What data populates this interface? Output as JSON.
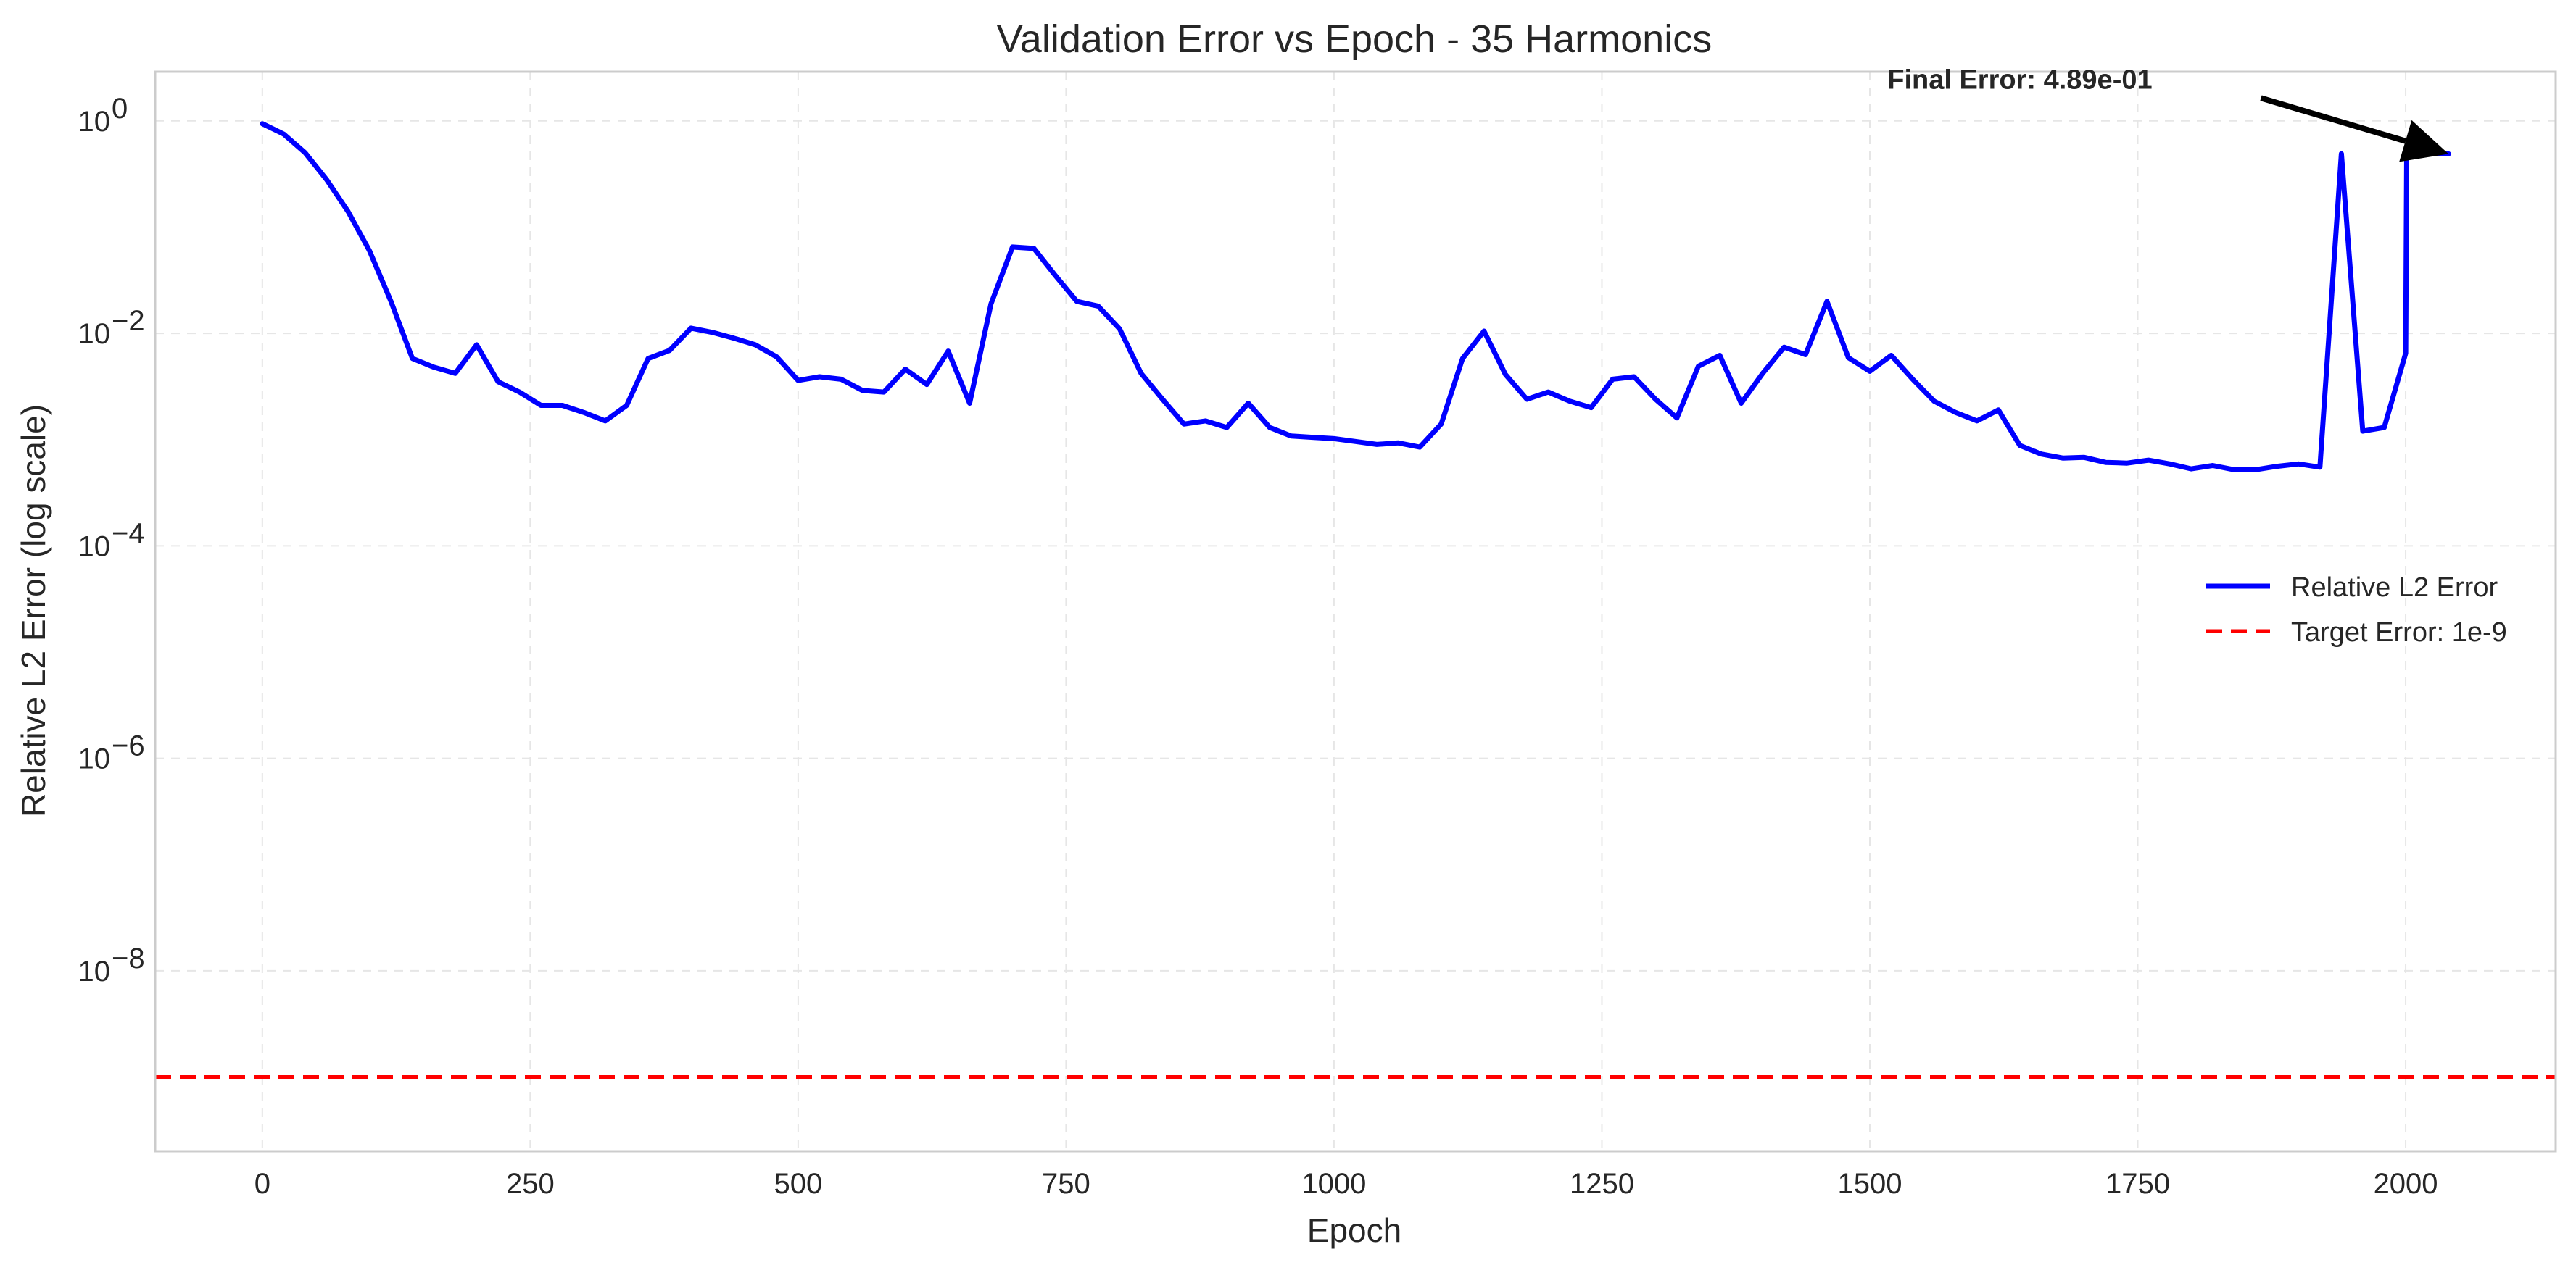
{
  "chart_data": {
    "type": "line",
    "title": "Validation Error vs Epoch - 35 Harmonics",
    "xlabel": "Epoch",
    "ylabel": "Relative L2 Error (log scale)",
    "yscale": "log",
    "xlim": [
      -100,
      2140
    ],
    "ylim": [
      2e-10,
      2.9
    ],
    "xticks": [
      0,
      250,
      500,
      750,
      1000,
      1250,
      1500,
      1750,
      2000
    ],
    "yticks": [
      {
        "value": 1,
        "base": "10",
        "exp": "0"
      },
      {
        "value": 0.01,
        "base": "10",
        "exp": "−2"
      },
      {
        "value": 0.0001,
        "base": "10",
        "exp": "−4"
      },
      {
        "value": 1e-06,
        "base": "10",
        "exp": "−6"
      },
      {
        "value": 1e-08,
        "base": "10",
        "exp": "−8"
      }
    ],
    "grid": true,
    "legend_position": "center-right",
    "series": [
      {
        "name": "Relative L2 Error",
        "color": "#0000ff",
        "style": "solid",
        "x": [
          0,
          20,
          40,
          60,
          80,
          100,
          120,
          140,
          160,
          180,
          200,
          220,
          240,
          260,
          280,
          300,
          320,
          340,
          360,
          380,
          400,
          420,
          440,
          460,
          480,
          500,
          520,
          540,
          560,
          580,
          600,
          620,
          640,
          660,
          680,
          700,
          720,
          740,
          760,
          780,
          800,
          820,
          840,
          860,
          880,
          900,
          920,
          940,
          960,
          980,
          1000,
          1020,
          1040,
          1060,
          1080,
          1100,
          1120,
          1140,
          1160,
          1180,
          1200,
          1220,
          1240,
          1260,
          1280,
          1300,
          1320,
          1340,
          1360,
          1380,
          1400,
          1420,
          1440,
          1460,
          1480,
          1500,
          1520,
          1540,
          1560,
          1580,
          1600,
          1620,
          1640,
          1660,
          1680,
          1700,
          1720,
          1740,
          1760,
          1780,
          1800,
          1820,
          1840,
          1860,
          1880,
          1900,
          1920,
          1940,
          1960,
          1980,
          2000,
          2001,
          2020,
          2040
        ],
        "y": [
          0.94,
          0.75,
          0.5,
          0.28,
          0.14,
          0.06,
          0.02,
          0.0058,
          0.0048,
          0.0042,
          0.0078,
          0.0035,
          0.0028,
          0.0021,
          0.0021,
          0.0018,
          0.0015,
          0.0021,
          0.0058,
          0.0069,
          0.0112,
          0.0102,
          0.009,
          0.0078,
          0.006,
          0.0036,
          0.0039,
          0.0037,
          0.0029,
          0.0028,
          0.0046,
          0.0033,
          0.0068,
          0.0022,
          0.019,
          0.065,
          0.063,
          0.035,
          0.02,
          0.018,
          0.011,
          0.0042,
          0.0024,
          0.0014,
          0.0015,
          0.0013,
          0.0022,
          0.0013,
          0.00108,
          0.00105,
          0.00102,
          0.00096,
          0.0009,
          0.00093,
          0.00085,
          0.0014,
          0.0058,
          0.0105,
          0.0041,
          0.0024,
          0.0028,
          0.0023,
          0.002,
          0.0037,
          0.0039,
          0.0024,
          0.0016,
          0.0049,
          0.0062,
          0.0022,
          0.0042,
          0.0074,
          0.0063,
          0.02,
          0.0059,
          0.0044,
          0.0062,
          0.0037,
          0.0023,
          0.0018,
          0.0015,
          0.0019,
          0.00088,
          0.00073,
          0.00067,
          0.00068,
          0.00061,
          0.0006,
          0.00064,
          0.00059,
          0.00053,
          0.00057,
          0.00052,
          0.00052,
          0.00056,
          0.00059,
          0.00055,
          0.49,
          0.0012,
          0.0013,
          0.0065,
          0.489,
          0.489,
          0.489
        ]
      },
      {
        "name": "Target Error: 1e-9",
        "color": "#ff0000",
        "style": "dashed",
        "y_constant": 1e-09
      }
    ],
    "annotations": [
      {
        "text": "Final Error: 4.89e-01",
        "text_x": 1640,
        "text_y": 2.0,
        "target_x": 2040,
        "target_y": 0.489
      }
    ]
  }
}
